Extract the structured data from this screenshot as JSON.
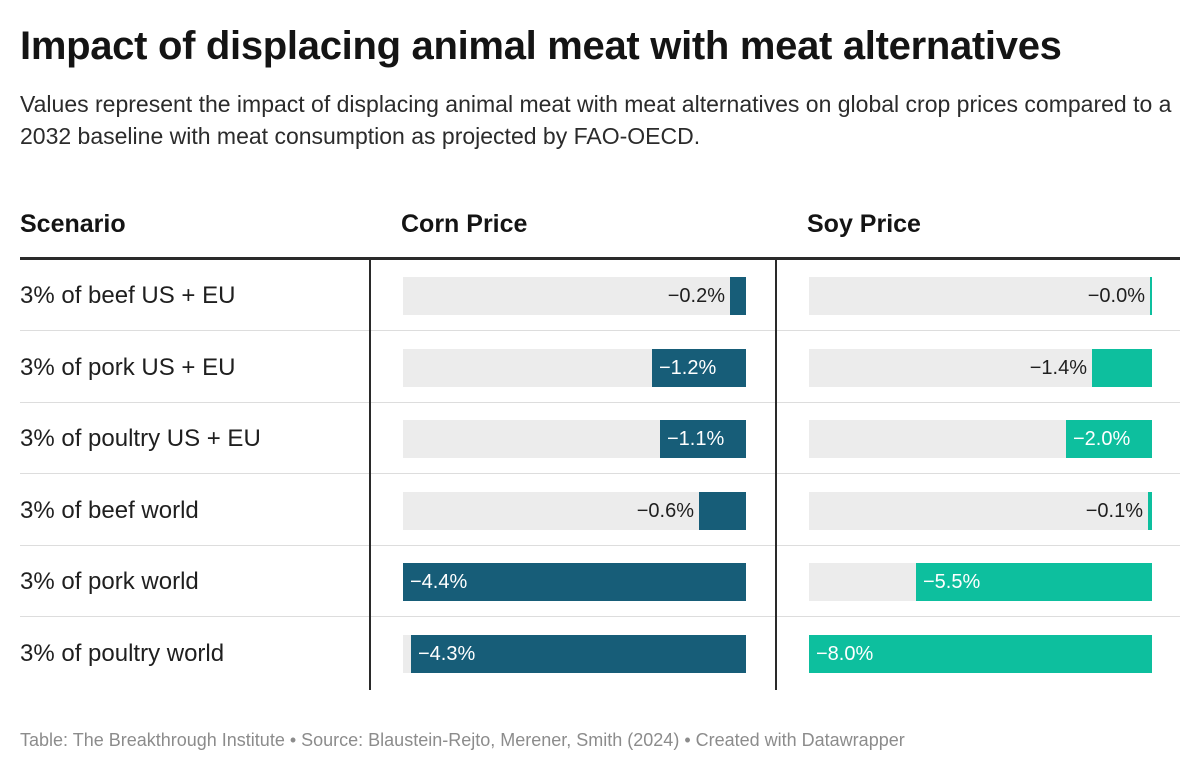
{
  "title": "Impact of displacing animal meat with meat alternatives",
  "subtitle": "Values represent the impact of displacing animal meat with meat alternatives on global crop prices compared to a 2032 baseline with meat consumption as projected by FAO-OECD.",
  "footer": "Table: The Breakthrough Institute • Source: Blaustein-Rejto, Merener, Smith (2024) • Created with Datawrapper",
  "colors": {
    "corn": "#175d78",
    "soy": "#0dbf9e",
    "track": "#ececec"
  },
  "chart_data": {
    "type": "table",
    "title": "Impact of displacing animal meat with meat alternatives",
    "columns": [
      "Scenario",
      "Corn Price",
      "Soy Price"
    ],
    "domain": {
      "corn": [
        -4.4,
        0
      ],
      "soy": [
        -8.0,
        0
      ]
    },
    "rows": [
      {
        "scenario": "3% of beef US + EU",
        "corn": -0.2,
        "corn_label": "−0.2%",
        "soy": -0.03,
        "soy_label": "−0.0%"
      },
      {
        "scenario": "3% of pork US + EU",
        "corn": -1.2,
        "corn_label": "−1.2%",
        "soy": -1.4,
        "soy_label": "−1.4%"
      },
      {
        "scenario": "3% of poultry US + EU",
        "corn": -1.1,
        "corn_label": "−1.1%",
        "soy": -2.0,
        "soy_label": "−2.0%"
      },
      {
        "scenario": "3% of beef world",
        "corn": -0.6,
        "corn_label": "−0.6%",
        "soy": -0.1,
        "soy_label": "−0.1%"
      },
      {
        "scenario": "3% of pork world",
        "corn": -4.4,
        "corn_label": "−4.4%",
        "soy": -5.5,
        "soy_label": "−5.5%"
      },
      {
        "scenario": "3% of poultry world",
        "corn": -4.3,
        "corn_label": "−4.3%",
        "soy": -8.0,
        "soy_label": "−8.0%"
      }
    ]
  }
}
